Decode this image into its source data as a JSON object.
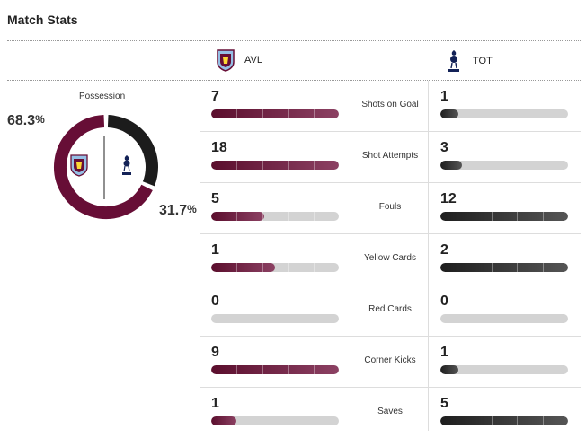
{
  "header": {
    "title": "Match Stats"
  },
  "teams": {
    "home": {
      "abbr": "AVL",
      "color": "#670e36",
      "crest": "aston-villa-crest-icon"
    },
    "away": {
      "abbr": "TOT",
      "color": "#1c1c1c",
      "crest": "tottenham-crest-icon"
    }
  },
  "possession": {
    "label": "Possession",
    "home_value": "68.3",
    "away_value": "31.7",
    "unit": "%",
    "home_fraction": 0.683,
    "away_fraction": 0.317
  },
  "stats": [
    {
      "label": "Shots on Goal",
      "home": "7",
      "away": "1",
      "home_fill": 1.0,
      "away_fill": 0.143
    },
    {
      "label": "Shot Attempts",
      "home": "18",
      "away": "3",
      "home_fill": 1.0,
      "away_fill": 0.167
    },
    {
      "label": "Fouls",
      "home": "5",
      "away": "12",
      "home_fill": 0.417,
      "away_fill": 1.0
    },
    {
      "label": "Yellow Cards",
      "home": "1",
      "away": "2",
      "home_fill": 0.5,
      "away_fill": 1.0
    },
    {
      "label": "Red Cards",
      "home": "0",
      "away": "0",
      "home_fill": 0,
      "away_fill": 0
    },
    {
      "label": "Corner Kicks",
      "home": "9",
      "away": "1",
      "home_fill": 1.0,
      "away_fill": 0.111
    },
    {
      "label": "Saves",
      "home": "1",
      "away": "5",
      "home_fill": 0.2,
      "away_fill": 1.0
    }
  ]
}
